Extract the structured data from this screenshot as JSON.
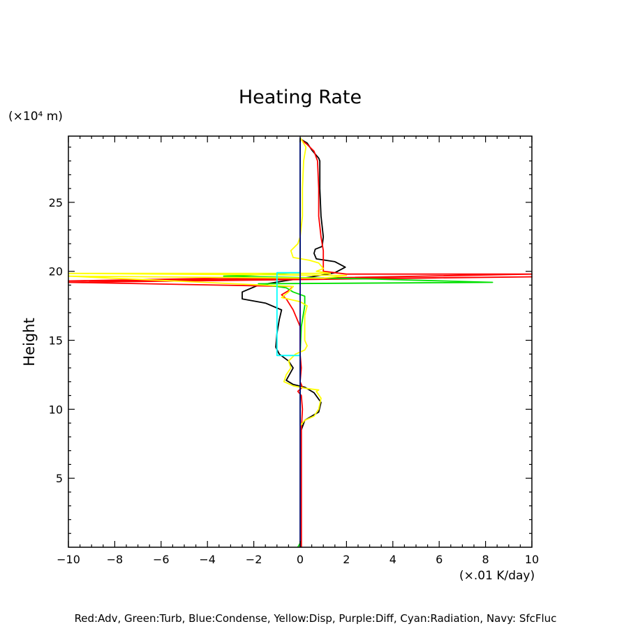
{
  "chart_data": {
    "type": "line",
    "title": "Heating Rate",
    "ylabel": "Height",
    "y_unit": "(×10⁴ m)",
    "x_unit": "(×.01 K/day)",
    "xlim": [
      -10,
      10
    ],
    "ylim": [
      0,
      29.8
    ],
    "x_ticks": [
      -10,
      -8,
      -6,
      -4,
      -2,
      0,
      2,
      4,
      6,
      8,
      10
    ],
    "x_tick_labels": [
      "−10",
      "−8",
      "−6",
      "−4",
      "−2",
      "0",
      "2",
      "4",
      "6",
      "8",
      "10"
    ],
    "y_ticks": [
      5,
      10,
      15,
      20,
      25
    ],
    "y_tick_labels": [
      "5",
      "10",
      "15",
      "20",
      "25"
    ],
    "legend_text": "Red:Adv, Green:Turb, Blue:Condense, Yellow:Disp, Purple:Diff, Cyan:Radiation, Navy: SfcFluc",
    "series": [
      {
        "color": "#000000",
        "points": [
          [
            0.05,
            0
          ],
          [
            0.05,
            5
          ],
          [
            0.05,
            8.5
          ],
          [
            0.2,
            9.2
          ],
          [
            0.8,
            9.8
          ],
          [
            0.9,
            10.5
          ],
          [
            0.6,
            11.2
          ],
          [
            0.2,
            11.6
          ],
          [
            -0.3,
            11.8
          ],
          [
            -0.6,
            12.1
          ],
          [
            -0.5,
            12.4
          ],
          [
            -0.3,
            13
          ],
          [
            -0.5,
            13.5
          ],
          [
            -0.9,
            14
          ],
          [
            -1.05,
            14.5
          ],
          [
            -1,
            15.5
          ],
          [
            -0.9,
            16.5
          ],
          [
            -0.8,
            17.2
          ],
          [
            -1.5,
            17.7
          ],
          [
            -2.5,
            18
          ],
          [
            -2.5,
            18.5
          ],
          [
            -1.8,
            19
          ],
          [
            -0.7,
            19.3
          ],
          [
            0.5,
            19.6
          ],
          [
            1.5,
            19.9
          ],
          [
            1.95,
            20.3
          ],
          [
            1.5,
            20.7
          ],
          [
            0.7,
            20.9
          ],
          [
            0.6,
            21.3
          ],
          [
            0.65,
            21.6
          ],
          [
            0.95,
            21.8
          ],
          [
            1,
            22.5
          ],
          [
            0.9,
            24
          ],
          [
            0.85,
            26
          ],
          [
            0.85,
            28
          ],
          [
            0.8,
            28.2
          ],
          [
            0.5,
            28.8
          ],
          [
            0.3,
            29.3
          ],
          [
            0,
            29.6
          ]
        ]
      },
      {
        "color": "#ff0000",
        "points": [
          [
            0.05,
            0
          ],
          [
            0.05,
            5
          ],
          [
            0.05,
            8.5
          ],
          [
            0.1,
            10
          ],
          [
            0.05,
            11
          ],
          [
            -0.1,
            11.3
          ],
          [
            0.1,
            11.6
          ],
          [
            0,
            12
          ],
          [
            0.05,
            13
          ],
          [
            0,
            14
          ],
          [
            0,
            16
          ],
          [
            -0.3,
            17.2
          ],
          [
            -0.6,
            18
          ],
          [
            -0.8,
            18.3
          ],
          [
            -0.5,
            18.6
          ],
          [
            -0.3,
            18.9
          ],
          [
            -10,
            19.2
          ],
          [
            10,
            19.6
          ],
          [
            -10,
            19.3
          ],
          [
            -3.5,
            19.5
          ],
          [
            0.5,
            19.5
          ],
          [
            10,
            19.8
          ],
          [
            2,
            19.8
          ],
          [
            1,
            20
          ],
          [
            1,
            20.5
          ],
          [
            1,
            21.5
          ],
          [
            0.9,
            22.5
          ],
          [
            0.8,
            24
          ],
          [
            0.8,
            26
          ],
          [
            0.75,
            28
          ],
          [
            0.6,
            28.7
          ],
          [
            0.3,
            29.2
          ],
          [
            0,
            29.6
          ]
        ]
      },
      {
        "color": "#00e000",
        "points": [
          [
            -0.1,
            0
          ],
          [
            0,
            0.3
          ],
          [
            0,
            5
          ],
          [
            0,
            10
          ],
          [
            0,
            14
          ],
          [
            0.05,
            16
          ],
          [
            0.2,
            17.5
          ],
          [
            0.2,
            18.2
          ],
          [
            -0.3,
            18.5
          ],
          [
            -0.6,
            18.8
          ],
          [
            -1.8,
            19.1
          ],
          [
            8.3,
            19.2
          ],
          [
            3,
            19.45
          ],
          [
            -3.3,
            19.65
          ],
          [
            -1,
            19.8
          ],
          [
            0,
            19.9
          ],
          [
            0,
            21
          ],
          [
            0,
            25
          ],
          [
            0,
            29.6
          ]
        ]
      },
      {
        "color": "#ffff00",
        "points": [
          [
            0,
            0
          ],
          [
            0,
            5
          ],
          [
            0,
            8.8
          ],
          [
            0.2,
            9.2
          ],
          [
            0.6,
            9.5
          ],
          [
            0.8,
            10
          ],
          [
            0.9,
            10.8
          ],
          [
            0.7,
            11.3
          ],
          [
            0.8,
            11.4
          ],
          [
            0.3,
            11.5
          ],
          [
            -0.3,
            11.7
          ],
          [
            -0.7,
            12
          ],
          [
            -0.6,
            12.5
          ],
          [
            -0.4,
            13
          ],
          [
            -0.5,
            13.5
          ],
          [
            -0.2,
            14
          ],
          [
            0.2,
            14.3
          ],
          [
            0.3,
            14.6
          ],
          [
            0.2,
            15
          ],
          [
            0.2,
            16
          ],
          [
            0.2,
            16.8
          ],
          [
            0.3,
            17.5
          ],
          [
            0,
            17.8
          ],
          [
            -0.8,
            18.1
          ],
          [
            -0.5,
            18.5
          ],
          [
            -0.3,
            18.9
          ],
          [
            -10,
            19.65
          ],
          [
            1,
            19.5
          ],
          [
            2,
            19.7
          ],
          [
            -10,
            19.85
          ],
          [
            1.3,
            19.85
          ],
          [
            0.7,
            20
          ],
          [
            1,
            20.2
          ],
          [
            0.8,
            20.6
          ],
          [
            0.4,
            20.8
          ],
          [
            -0.3,
            21
          ],
          [
            -0.4,
            21.5
          ],
          [
            -0.1,
            22
          ],
          [
            0,
            22.5
          ],
          [
            0.1,
            24
          ],
          [
            0.1,
            26
          ],
          [
            0.15,
            28
          ],
          [
            0.25,
            29
          ],
          [
            0,
            29.7
          ]
        ]
      },
      {
        "color": "#00ffff",
        "points": [
          [
            0,
            13.9
          ],
          [
            -1,
            13.9
          ],
          [
            -1,
            19.9
          ],
          [
            0,
            19.9
          ]
        ]
      },
      {
        "color": "#000080",
        "points": [
          [
            0,
            0
          ],
          [
            0,
            29.7
          ]
        ]
      }
    ]
  }
}
